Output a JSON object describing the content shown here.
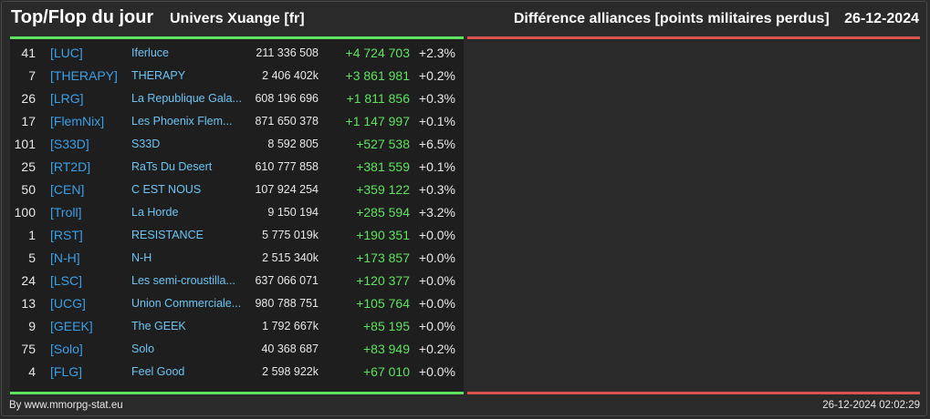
{
  "header": {
    "title": "Top/Flop du jour",
    "universe": "Univers Xuange [fr]",
    "right_title": "Différence alliances [points militaires perdus]",
    "date": "26-12-2024"
  },
  "colors": {
    "accent_positive": "#5ee35e",
    "accent_negative": "#d9534f",
    "tag": "#3aa0e8",
    "name": "#6cc4f4"
  },
  "rows": [
    {
      "rank": "41",
      "tag": "[LUC]",
      "name": "Iferluce",
      "points": "211 336 508",
      "diff": "+4 724 703",
      "pct": "+2.3%"
    },
    {
      "rank": "7",
      "tag": "[THERAPY]",
      "name": "THERAPY",
      "points": "2 406 402k",
      "diff": "+3 861 981",
      "pct": "+0.2%"
    },
    {
      "rank": "26",
      "tag": "[LRG]",
      "name": "La Republique Gala...",
      "points": "608 196 696",
      "diff": "+1 811 856",
      "pct": "+0.3%"
    },
    {
      "rank": "17",
      "tag": "[FlemNix]",
      "name": "Les Phoenix Flem...",
      "points": "871 650 378",
      "diff": "+1 147 997",
      "pct": "+0.1%"
    },
    {
      "rank": "101",
      "tag": "[S33D]",
      "name": "S33D",
      "points": "8 592 805",
      "diff": "+527 538",
      "pct": "+6.5%"
    },
    {
      "rank": "25",
      "tag": "[RT2D]",
      "name": "RaTs Du Desert",
      "points": "610 777 858",
      "diff": "+381 559",
      "pct": "+0.1%"
    },
    {
      "rank": "50",
      "tag": "[CEN]",
      "name": "C EST NOUS",
      "points": "107 924 254",
      "diff": "+359 122",
      "pct": "+0.3%"
    },
    {
      "rank": "100",
      "tag": "[Troll]",
      "name": "La Horde",
      "points": "9 150 194",
      "diff": "+285 594",
      "pct": "+3.2%"
    },
    {
      "rank": "1",
      "tag": "[RST]",
      "name": "RESISTANCE",
      "points": "5 775 019k",
      "diff": "+190 351",
      "pct": "+0.0%"
    },
    {
      "rank": "5",
      "tag": "[N-H]",
      "name": "N-H",
      "points": "2 515 340k",
      "diff": "+173 857",
      "pct": "+0.0%"
    },
    {
      "rank": "24",
      "tag": "[LSC]",
      "name": "Les semi-croustilla...",
      "points": "637 066 071",
      "diff": "+120 377",
      "pct": "+0.0%"
    },
    {
      "rank": "13",
      "tag": "[UCG]",
      "name": "Union Commerciale...",
      "points": "980 788 751",
      "diff": "+105 764",
      "pct": "+0.0%"
    },
    {
      "rank": "9",
      "tag": "[GEEK]",
      "name": "The GEEK",
      "points": "1 792 667k",
      "diff": "+85 195",
      "pct": "+0.0%"
    },
    {
      "rank": "75",
      "tag": "[Solo]",
      "name": "Solo",
      "points": "40 368 687",
      "diff": "+83 949",
      "pct": "+0.2%"
    },
    {
      "rank": "4",
      "tag": "[FLG]",
      "name": "Feel Good",
      "points": "2 598 922k",
      "diff": "+67 010",
      "pct": "+0.0%"
    }
  ],
  "footer": {
    "credit": "By www.mmorpg-stat.eu",
    "timestamp": "26-12-2024 02:02:29"
  }
}
